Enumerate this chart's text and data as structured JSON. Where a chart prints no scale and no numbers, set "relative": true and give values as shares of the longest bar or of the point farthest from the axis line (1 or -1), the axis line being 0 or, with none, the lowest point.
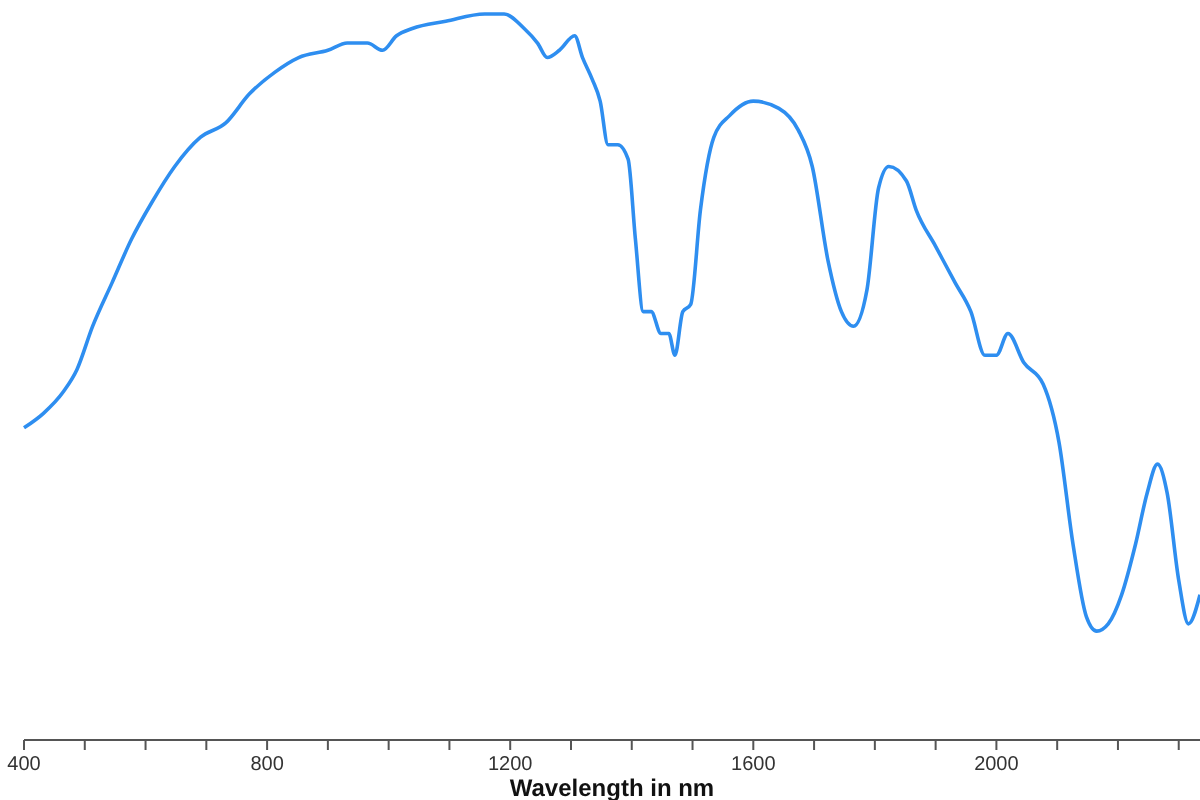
{
  "chart_data": {
    "type": "line",
    "xlabel": "Wavelength in nm",
    "relative": true,
    "xlim": [
      400,
      2335
    ],
    "xticks": [
      400,
      {
        "value": 500,
        "label": null
      },
      {
        "value": 600,
        "label": null
      },
      {
        "value": 700,
        "label": null
      },
      800,
      {
        "value": 900,
        "label": null
      },
      {
        "value": 1000,
        "label": null
      },
      {
        "value": 1100,
        "label": null
      },
      1200,
      {
        "value": 1300,
        "label": null
      },
      {
        "value": 1400,
        "label": null
      },
      {
        "value": 1500,
        "label": null
      },
      1600,
      {
        "value": 1700,
        "label": null
      },
      {
        "value": 1800,
        "label": null
      },
      {
        "value": 1900,
        "label": null
      },
      2000,
      {
        "value": 2100,
        "label": null
      },
      {
        "value": 2200,
        "label": null
      },
      {
        "value": 2300,
        "label": null
      }
    ],
    "grid": false,
    "marker": "none",
    "line_style": "solid",
    "x": [
      400,
      432,
      465,
      487,
      513,
      545,
      577,
      610,
      648,
      690,
      732,
      771,
      813,
      852,
      900,
      932,
      965,
      990,
      1013,
      1039,
      1094,
      1158,
      1190,
      1223,
      1245,
      1261,
      1281,
      1306,
      1319,
      1335,
      1348,
      1361,
      1377,
      1394,
      1406,
      1419,
      1432,
      1448,
      1461,
      1471,
      1484,
      1497,
      1513,
      1535,
      1561,
      1600,
      1642,
      1674,
      1697,
      1723,
      1745,
      1765,
      1787,
      1806,
      1823,
      1852,
      1868,
      1900,
      1932,
      1958,
      1981,
      2000,
      2019,
      2045,
      2077,
      2103,
      2126,
      2148,
      2165,
      2184,
      2206,
      2229,
      2248,
      2265,
      2281,
      2300,
      2316,
      2335
    ],
    "series": [
      {
        "color": "#2e8ef0",
        "values": [
          0.43,
          0.45,
          0.48,
          0.51,
          0.57,
          0.63,
          0.69,
          0.74,
          0.79,
          0.83,
          0.85,
          0.89,
          0.92,
          0.94,
          0.95,
          0.96,
          0.96,
          0.95,
          0.97,
          0.98,
          0.99,
          1.0,
          1.0,
          0.98,
          0.96,
          0.94,
          0.95,
          0.97,
          0.94,
          0.91,
          0.88,
          0.82,
          0.82,
          0.8,
          0.69,
          0.59,
          0.59,
          0.56,
          0.56,
          0.53,
          0.59,
          0.6,
          0.73,
          0.83,
          0.86,
          0.88,
          0.87,
          0.84,
          0.79,
          0.66,
          0.59,
          0.57,
          0.62,
          0.76,
          0.79,
          0.77,
          0.73,
          0.68,
          0.63,
          0.59,
          0.53,
          0.53,
          0.56,
          0.52,
          0.49,
          0.41,
          0.27,
          0.17,
          0.15,
          0.16,
          0.2,
          0.27,
          0.34,
          0.38,
          0.34,
          0.22,
          0.16,
          0.2
        ]
      }
    ]
  }
}
